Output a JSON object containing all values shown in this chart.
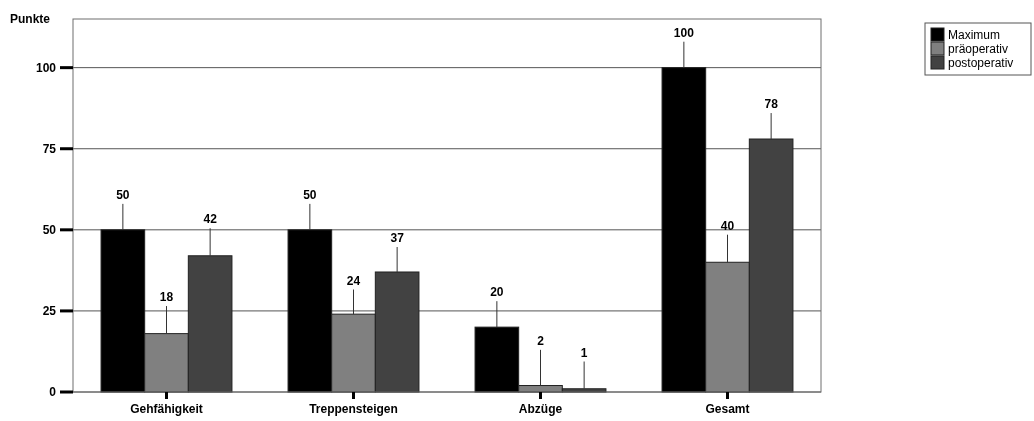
{
  "chart_data": {
    "type": "bar",
    "ylabel": "Punkte",
    "categories": [
      "Gehfähigkeit",
      "Treppensteigen",
      "Abzüge",
      "Gesamt"
    ],
    "series": [
      {
        "name": "Maximum",
        "color": "#000000",
        "values": [
          50,
          50,
          20,
          100
        ],
        "errors": [
          [
            50,
            58
          ],
          [
            50,
            58
          ],
          [
            20,
            28
          ],
          [
            100,
            108
          ]
        ]
      },
      {
        "name": "präoperativ",
        "color": "#808080",
        "values": [
          18,
          24,
          2,
          40
        ],
        "errors": [
          [
            18,
            26.5
          ],
          [
            24,
            31.6
          ],
          [
            2,
            13
          ],
          [
            40,
            48.5
          ]
        ]
      },
      {
        "name": "postoperativ",
        "color": "#424242",
        "values": [
          42,
          37,
          1,
          78
        ],
        "errors": [
          [
            42,
            50.5
          ],
          [
            37,
            44.7
          ],
          [
            1,
            9.4
          ],
          [
            78,
            86
          ]
        ]
      }
    ],
    "ylim": [
      0,
      115
    ],
    "yticks": [
      0,
      25,
      50,
      75,
      100
    ],
    "grid": "y",
    "legend": "top right",
    "data_labels": true
  }
}
